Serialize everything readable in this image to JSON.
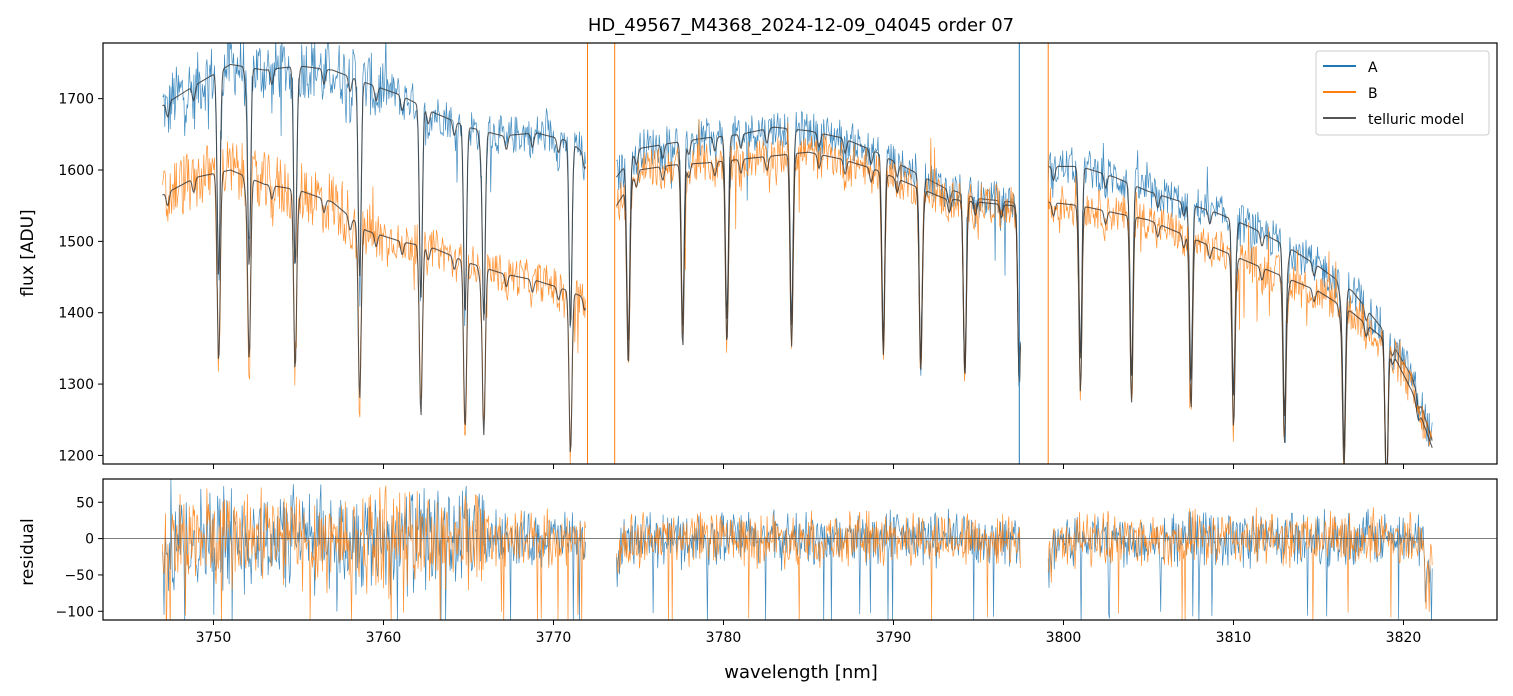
{
  "title": "HD_49567_M4368_2024-12-09_04045  order 07",
  "chart_data": [
    {
      "type": "line",
      "panel": "top",
      "title": "HD_49567_M4368_2024-12-09_04045  order 07",
      "xlabel": "",
      "ylabel": "flux [ADU]",
      "xlim": [
        3743.5,
        3825.5
      ],
      "ylim": [
        1188,
        1778
      ],
      "xticks": [
        3750,
        3760,
        3770,
        3780,
        3790,
        3800,
        3810,
        3820
      ],
      "yticks": [
        1200,
        1300,
        1400,
        1500,
        1600,
        1700
      ],
      "ytick_labels": [
        "1200",
        "1300",
        "1400",
        "1500",
        "1600",
        "1700"
      ],
      "grid": false,
      "legend_position": "top-right",
      "legend": [
        "A",
        "B",
        "telluric model"
      ],
      "segments_nm": [
        [
          3747.0,
          3771.9
        ],
        [
          3773.7,
          3797.5
        ],
        [
          3799.1,
          3821.7
        ]
      ],
      "series": [
        {
          "name": "A",
          "color": "#1f77b4",
          "x": [
            3747,
            3749,
            3751,
            3753,
            3755,
            3757,
            3759,
            3761,
            3763,
            3765,
            3767,
            3769,
            3771,
            3771.9,
            3773.7,
            3775,
            3777,
            3779,
            3781,
            3783,
            3785,
            3787,
            3789,
            3791,
            3793,
            3795,
            3797,
            3797.5,
            3799.1,
            3801,
            3803,
            3805,
            3807,
            3809,
            3811,
            3813,
            3815,
            3817,
            3819,
            3820.5,
            3821.7
          ],
          "y": [
            1690,
            1720,
            1748,
            1740,
            1746,
            1740,
            1722,
            1705,
            1680,
            1660,
            1648,
            1652,
            1640,
            1620,
            1590,
            1630,
            1638,
            1645,
            1650,
            1660,
            1655,
            1645,
            1625,
            1600,
            1575,
            1560,
            1555,
            1550,
            1605,
            1605,
            1590,
            1570,
            1555,
            1540,
            1520,
            1495,
            1465,
            1430,
            1370,
            1310,
            1220
          ]
        },
        {
          "name": "B",
          "color": "#ff7f0e",
          "x": [
            3747,
            3749,
            3751,
            3753,
            3755,
            3757,
            3759,
            3761,
            3763,
            3765,
            3767,
            3769,
            3771,
            3771.9,
            3773.7,
            3775,
            3777,
            3779,
            3781,
            3783,
            3785,
            3787,
            3789,
            3791,
            3793,
            3795,
            3797,
            3797.5,
            3799.1,
            3801,
            3803,
            3805,
            3807,
            3809,
            3811,
            3813,
            3815,
            3817,
            3819,
            3820.5,
            3821.7
          ],
          "y": [
            1565,
            1590,
            1600,
            1580,
            1572,
            1555,
            1515,
            1500,
            1490,
            1470,
            1455,
            1445,
            1430,
            1420,
            1550,
            1600,
            1607,
            1610,
            1615,
            1620,
            1625,
            1615,
            1600,
            1580,
            1560,
            1555,
            1550,
            1545,
            1555,
            1550,
            1540,
            1530,
            1510,
            1490,
            1470,
            1450,
            1430,
            1400,
            1360,
            1290,
            1210
          ]
        },
        {
          "name": "telluric model",
          "color": "#3a3a3a",
          "lines_nm": [
            3750.3,
            3752.1,
            3754.8,
            3758.6,
            3762.2,
            3764.8,
            3765.9,
            3771.0,
            3774.4,
            3777.6,
            3780.2,
            3784.0,
            3789.4,
            3791.6,
            3794.2,
            3797.4,
            3801.0,
            3804.0,
            3807.5,
            3810.0,
            3813.0,
            3816.5,
            3819.0
          ]
        }
      ]
    },
    {
      "type": "line",
      "panel": "bottom",
      "xlabel": "wavelength [nm]",
      "ylabel": "residual",
      "xlim": [
        3743.5,
        3825.5
      ],
      "ylim": [
        -112,
        82
      ],
      "xticks": [
        3750,
        3760,
        3770,
        3780,
        3790,
        3800,
        3810,
        3820
      ],
      "xtick_labels": [
        "3750",
        "3760",
        "3770",
        "3780",
        "3790",
        "3800",
        "3810",
        "3820"
      ],
      "yticks": [
        -100,
        -50,
        0,
        50
      ],
      "ytick_labels": [
        "−100",
        "−50",
        "0",
        "50"
      ],
      "grid": false,
      "reference_line_y": 0,
      "series": [
        {
          "name": "A",
          "color": "#1f77b4"
        },
        {
          "name": "B",
          "color": "#ff7f0e"
        }
      ]
    }
  ]
}
